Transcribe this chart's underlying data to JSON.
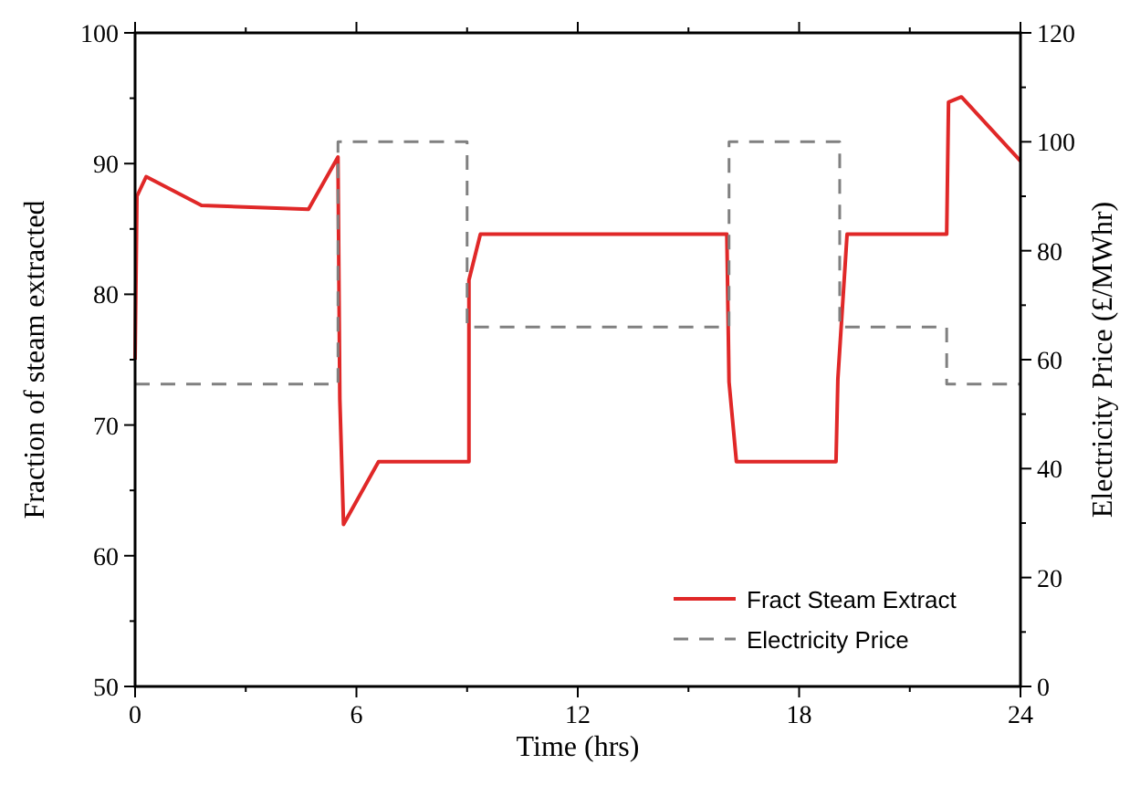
{
  "chart_data": {
    "type": "line",
    "xlabel": "Time (hrs)",
    "ylabel": "Fraction of steam extracted",
    "y2label": "Electricity Price (£/MWhr)",
    "xlim": [
      0,
      24
    ],
    "xticks": [
      0,
      {
        "value": 3,
        "label": null
      },
      6,
      {
        "value": 9,
        "label": null
      },
      12,
      {
        "value": 15,
        "label": null
      },
      18,
      {
        "value": 21,
        "label": null
      },
      24
    ],
    "ylim": [
      50,
      100
    ],
    "yticks": [
      50,
      {
        "value": 55,
        "label": null
      },
      60,
      {
        "value": 65,
        "label": null
      },
      70,
      {
        "value": 75,
        "label": null
      },
      80,
      {
        "value": 85,
        "label": null
      },
      90,
      {
        "value": 95,
        "label": null
      },
      100
    ],
    "y2lim": [
      0,
      120
    ],
    "y2ticks": [
      0,
      {
        "value": 10,
        "label": null
      },
      20,
      {
        "value": 30,
        "label": null
      },
      40,
      {
        "value": 50,
        "label": null
      },
      60,
      {
        "value": 70,
        "label": null
      },
      80,
      {
        "value": 90,
        "label": null
      },
      100,
      {
        "value": 110,
        "label": null
      },
      120
    ],
    "grid": false,
    "legend": "bottom right",
    "series": [
      {
        "name": "Fract Steam Extract",
        "color": "#e02828",
        "line_style": "solid",
        "x": [
          0,
          0.05,
          0.3,
          1.8,
          4.7,
          5.5,
          5.55,
          5.65,
          6.6,
          9.05,
          9.05,
          9.36,
          16.04,
          16.1,
          16.3,
          19.0,
          19.05,
          19.3,
          22.0,
          22.05,
          22.4,
          24
        ],
        "values": [
          75,
          87.5,
          89,
          86.8,
          86.5,
          90.5,
          72,
          62.4,
          67.2,
          67.2,
          81.1,
          84.6,
          84.6,
          73.3,
          67.2,
          67.2,
          73.5,
          84.6,
          84.6,
          94.7,
          95.1,
          90.2
        ]
      },
      {
        "name": "Electricity Price",
        "type": "step",
        "axis": "y2",
        "color": "#808080",
        "line_style": "dashed",
        "x": [
          0,
          5.5,
          9,
          16.1,
          19.1,
          22,
          24
        ],
        "values": [
          55.5,
          100,
          66,
          100,
          66,
          55.5,
          55.5
        ]
      }
    ]
  }
}
